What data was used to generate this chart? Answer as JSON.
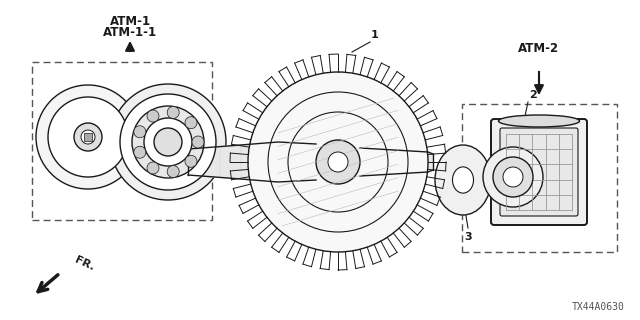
{
  "bg_color": "#ffffff",
  "dark": "#1a1a1a",
  "mid": "#777777",
  "light": "#eeeeee",
  "labels": {
    "atm1_line1": "ATM-1",
    "atm1_line2": "ATM-1-1",
    "atm2": "ATM-2",
    "fr": "FR.",
    "code": "TX44A0630",
    "num1": "1",
    "num2": "2",
    "num3": "3"
  },
  "figsize": [
    6.4,
    3.2
  ],
  "dpi": 100,
  "xlim": [
    0,
    640
  ],
  "ylim": [
    0,
    320
  ]
}
